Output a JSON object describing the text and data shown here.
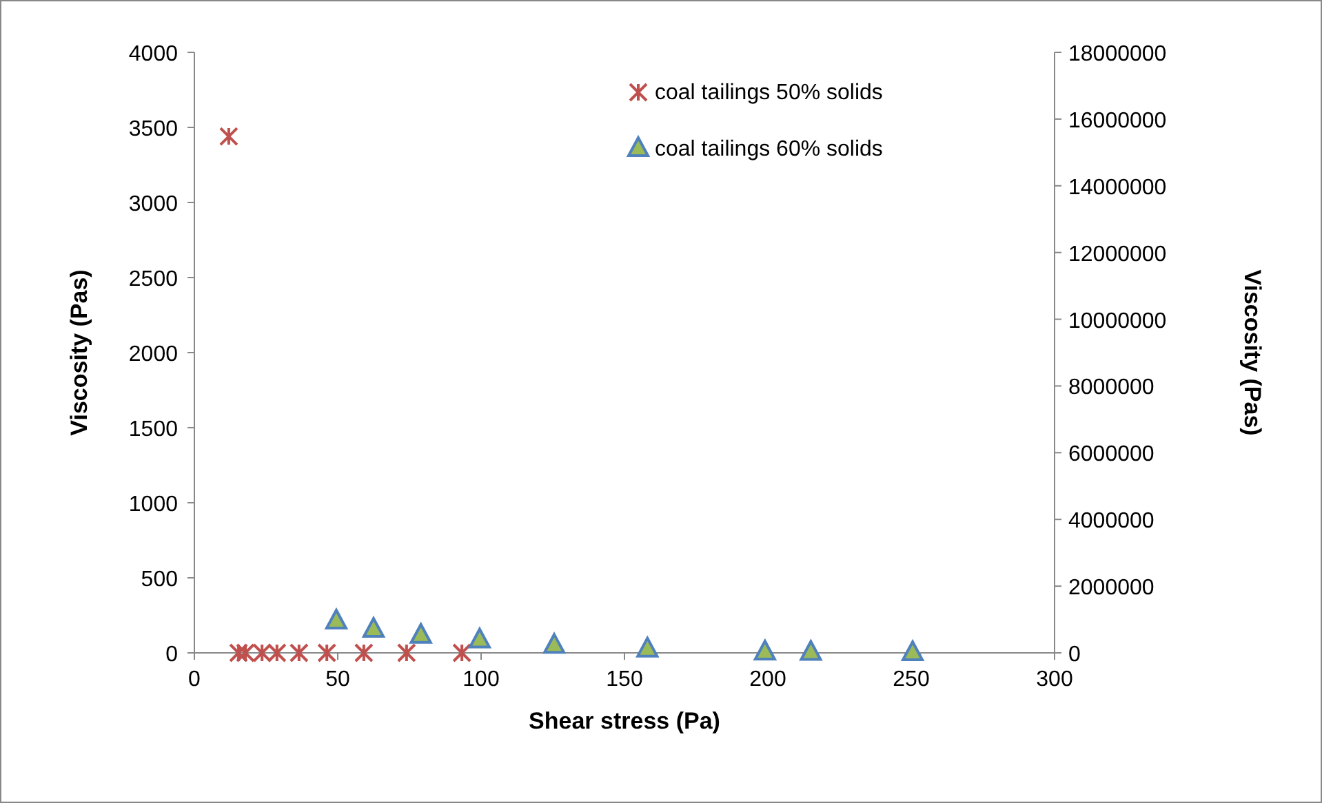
{
  "chart_data": {
    "type": "scatter",
    "xlabel": "Shear stress (Pa)",
    "ylabel": "Viscosity (Pas)",
    "y2label": "Viscosity (Pas)",
    "xlim": [
      0,
      300
    ],
    "xticks": [
      0,
      50,
      100,
      150,
      200,
      250,
      300
    ],
    "ylim": [
      0,
      4000
    ],
    "yticks": [
      0,
      500,
      1000,
      1500,
      2000,
      2500,
      3000,
      3500,
      4000
    ],
    "y2lim": [
      0,
      18000000
    ],
    "y2ticks": [
      0,
      2000000,
      4000000,
      6000000,
      8000000,
      10000000,
      12000000,
      14000000,
      16000000,
      18000000
    ],
    "legend": "top right",
    "grid": false,
    "series": [
      {
        "name": "coal tailings 50% solids",
        "color": "#c0504d",
        "marker": "cross",
        "x": [
          12,
          15.4,
          17.8,
          23.6,
          28.8,
          36.5,
          46.2,
          59.1,
          74,
          93.3
        ],
        "values": [
          3440,
          0,
          0,
          0,
          0,
          0,
          0,
          0,
          0,
          0
        ]
      },
      {
        "name": "coal tailings 60% solids",
        "color": "#9bbb59",
        "marker": "triangle",
        "axis": "y2",
        "x": [
          49.5,
          62.5,
          79,
          99.5,
          125.5,
          158,
          199,
          215,
          250.5
        ],
        "values": [
          950000,
          700000,
          520000,
          380000,
          220000,
          110000,
          20000,
          10000,
          0
        ]
      }
    ]
  }
}
